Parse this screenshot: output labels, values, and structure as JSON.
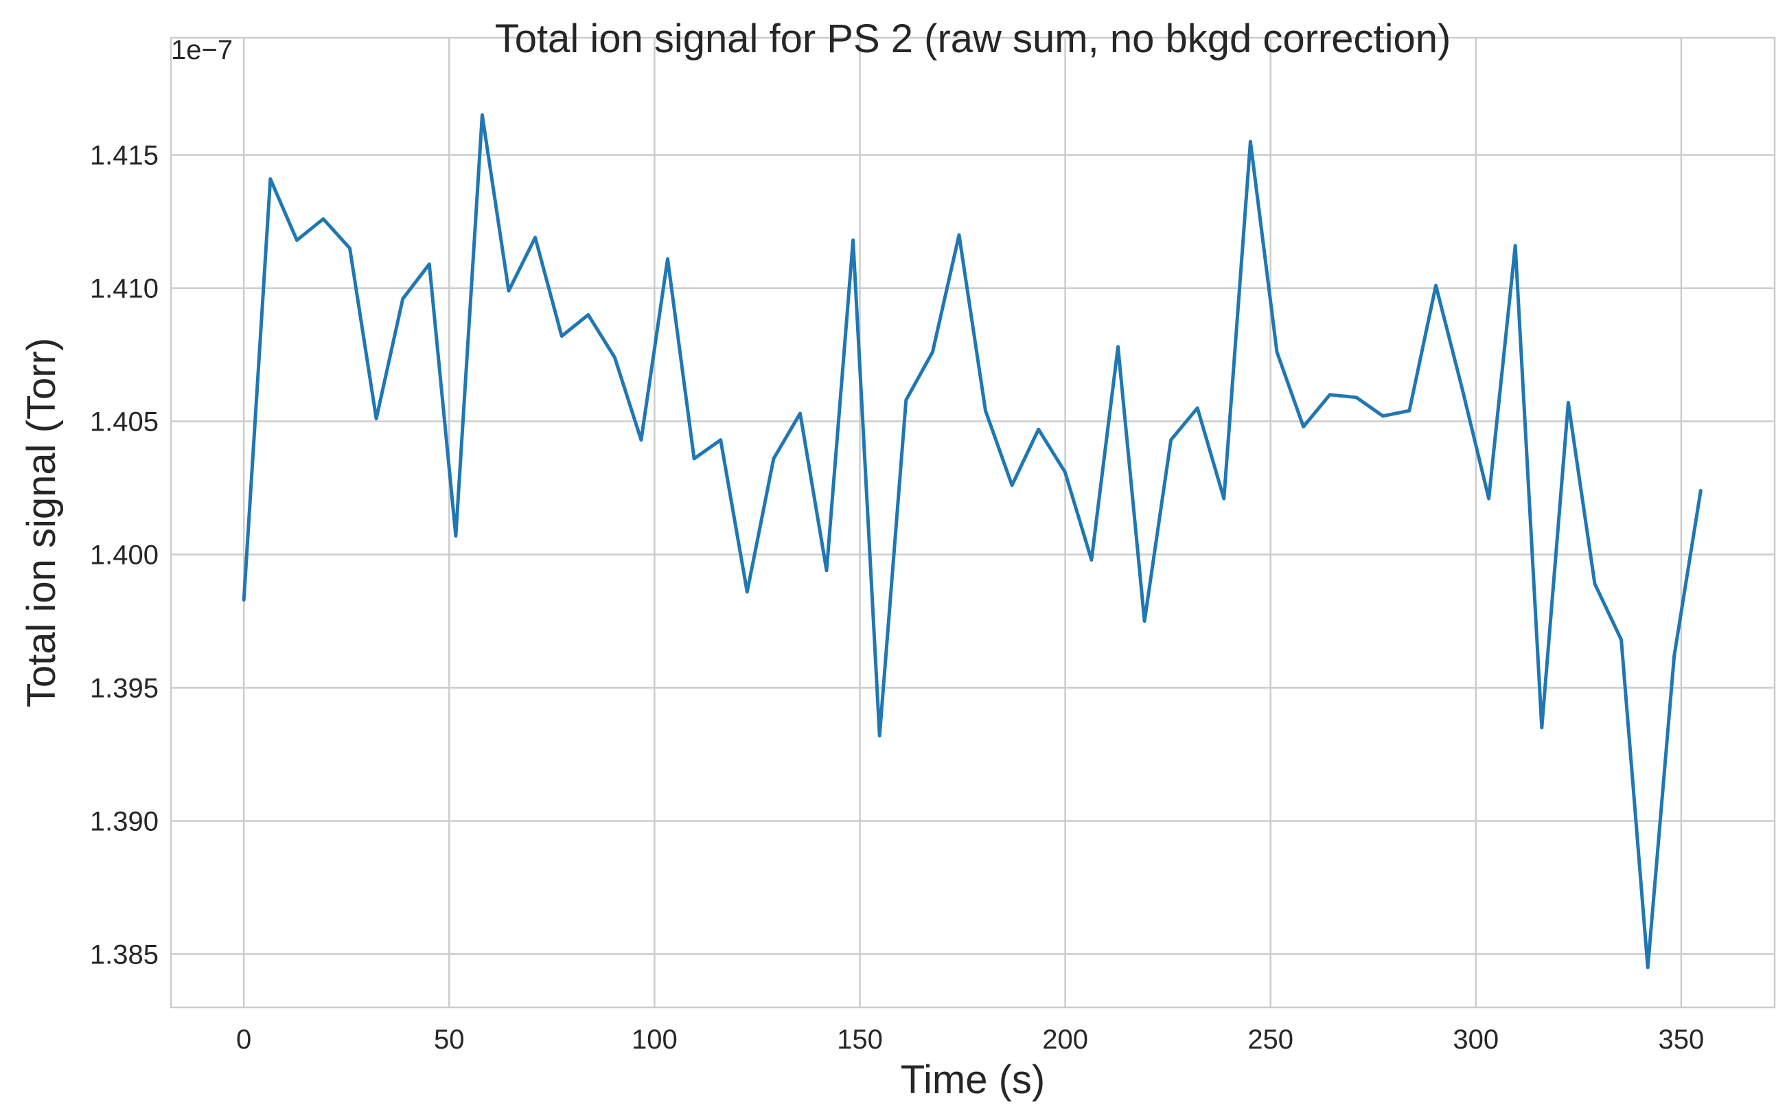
{
  "chart_data": {
    "type": "line",
    "title": "Total ion signal for PS 2 (raw sum, no bkgd correction)",
    "xlabel": "Time (s)",
    "ylabel": "Total ion signal (Torr)",
    "y_offset_label": "1e−7",
    "xlim": [
      -17.75,
      372.75
    ],
    "ylim": [
      1.383,
      1.4194
    ],
    "x_ticks": [
      0,
      50,
      100,
      150,
      200,
      250,
      300,
      350
    ],
    "x_tick_labels": [
      "0",
      "50",
      "100",
      "150",
      "200",
      "250",
      "300",
      "350"
    ],
    "y_ticks": [
      1.385,
      1.39,
      1.395,
      1.4,
      1.405,
      1.41,
      1.415
    ],
    "y_tick_labels": [
      "1.385",
      "1.390",
      "1.395",
      "1.400",
      "1.405",
      "1.410",
      "1.415"
    ],
    "grid": true,
    "series": [
      {
        "color": "#1f77b4",
        "x": [
          0,
          6.45,
          12.9,
          19.35,
          25.8,
          32.25,
          38.7,
          45.15,
          51.6,
          58.05,
          64.5,
          70.95,
          77.4,
          83.85,
          90.3,
          96.75,
          103.2,
          109.65,
          116.1,
          122.55,
          129,
          135.45,
          141.9,
          148.35,
          154.8,
          161.25,
          167.7,
          174.15,
          180.6,
          187.05,
          193.5,
          199.95,
          206.4,
          212.85,
          219.3,
          225.75,
          232.2,
          238.65,
          245.1,
          251.55,
          258,
          264.45,
          270.9,
          277.35,
          283.8,
          290.25,
          296.7,
          303.15,
          309.6,
          316.05,
          322.5,
          328.95,
          335.4,
          341.85,
          348.3,
          354.75
        ],
        "values": [
          1.3983,
          1.4141,
          1.4118,
          1.4126,
          1.4115,
          1.4051,
          1.4096,
          1.4109,
          1.4007,
          1.4165,
          1.4099,
          1.4119,
          1.4082,
          1.409,
          1.4074,
          1.4043,
          1.4111,
          1.4036,
          1.4043,
          1.3986,
          1.4036,
          1.4053,
          1.3994,
          1.4118,
          1.3932,
          1.4058,
          1.4076,
          1.412,
          1.4054,
          1.4026,
          1.4047,
          1.4031,
          1.3998,
          1.4078,
          1.3975,
          1.4043,
          1.4055,
          1.4021,
          1.4155,
          1.4076,
          1.4048,
          1.406,
          1.4059,
          1.4052,
          1.4054,
          1.4101,
          1.4062,
          1.4021,
          1.4116,
          1.3935,
          1.4057,
          1.3989,
          1.3968,
          1.3845,
          1.3962,
          1.4024
        ]
      }
    ]
  }
}
